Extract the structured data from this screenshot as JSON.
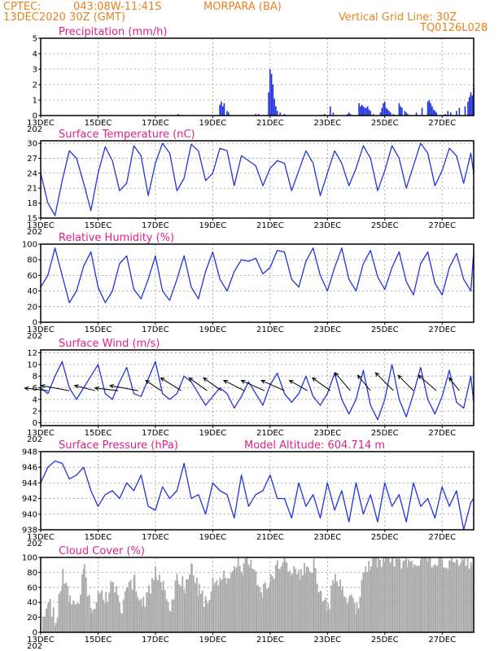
{
  "header": {
    "source": "CPTEC:",
    "coords": "043:08W-11:41S",
    "station": "MORPARA (BA)",
    "run": "13DEC2020 30Z (GMT)",
    "grid_note": "Vertical Grid Line: 30Z",
    "model_code": "TQ0126L028"
  },
  "colors": {
    "header": "#e8821e",
    "panel_title": "#e0208a",
    "line": "#2233dd",
    "cloud": "#a9a9a9",
    "wind_arrow": "#000000"
  },
  "x_axis": {
    "ticks": [
      "13DEC",
      "15DEC",
      "17DEC",
      "19DEC",
      "21DEC",
      "23DEC",
      "25DEC",
      "27DEC"
    ],
    "tick_days": [
      0,
      2,
      4,
      6,
      8,
      10,
      12,
      14
    ],
    "clipped_label": "202",
    "range_days": [
      0,
      15.1
    ]
  },
  "chart_data": [
    {
      "id": "precip",
      "type": "bar",
      "title": "Precipitation (mm/h)",
      "ylim": [
        0,
        5
      ],
      "yticks": [
        0,
        1,
        2,
        3,
        4,
        5
      ],
      "x_days": [
        4.8,
        6.25,
        6.3,
        6.35,
        6.4,
        6.5,
        6.55,
        7.5,
        7.6,
        7.95,
        8.0,
        8.05,
        8.1,
        8.15,
        8.2,
        8.25,
        8.35,
        8.5,
        9.9,
        10.1,
        10.2,
        10.7,
        10.75,
        10.8,
        11.1,
        11.15,
        11.2,
        11.25,
        11.3,
        11.35,
        11.4,
        11.45,
        11.5,
        11.6,
        11.85,
        11.9,
        11.95,
        12.0,
        12.05,
        12.1,
        12.15,
        12.2,
        12.3,
        12.5,
        12.55,
        12.6,
        12.7,
        12.75,
        12.8,
        13.1,
        13.3,
        13.5,
        13.55,
        13.6,
        13.65,
        13.7,
        13.75,
        13.8,
        14.1,
        14.2,
        14.3,
        14.5,
        14.6,
        14.8,
        14.9,
        14.95,
        15.0,
        15.05,
        15.1
      ],
      "values": [
        0.1,
        0.7,
        0.9,
        0.6,
        0.8,
        0.3,
        0.2,
        0.1,
        0.1,
        1.5,
        3.0,
        2.7,
        2.0,
        1.1,
        0.6,
        0.3,
        0.2,
        0.1,
        0.1,
        0.6,
        0.2,
        0.1,
        0.2,
        0.1,
        0.8,
        0.6,
        0.7,
        0.6,
        0.5,
        0.5,
        0.6,
        0.4,
        0.3,
        0.1,
        0.2,
        0.5,
        0.8,
        0.9,
        0.5,
        0.4,
        0.3,
        0.2,
        0.1,
        0.8,
        0.6,
        0.5,
        0.3,
        0.2,
        0.1,
        0.2,
        0.5,
        0.9,
        1.0,
        0.8,
        0.6,
        0.4,
        0.3,
        0.2,
        0.1,
        0.3,
        0.2,
        0.3,
        0.5,
        0.6,
        0.9,
        1.2,
        1.5,
        1.3,
        1.8
      ]
    },
    {
      "id": "temp",
      "type": "line",
      "title": "Surface Temperature (nC)",
      "ylim": [
        15,
        30.5
      ],
      "yticks": [
        15,
        18,
        21,
        24,
        27,
        30
      ],
      "x_days": [
        0,
        0.25,
        0.5,
        0.75,
        1,
        1.25,
        1.5,
        1.75,
        2,
        2.25,
        2.5,
        2.75,
        3,
        3.25,
        3.5,
        3.75,
        4,
        4.25,
        4.5,
        4.75,
        5,
        5.25,
        5.5,
        5.75,
        6,
        6.25,
        6.5,
        6.75,
        7,
        7.25,
        7.5,
        7.75,
        8,
        8.25,
        8.5,
        8.75,
        9,
        9.25,
        9.5,
        9.75,
        10,
        10.25,
        10.5,
        10.75,
        11,
        11.25,
        11.5,
        11.75,
        12,
        12.25,
        12.5,
        12.75,
        13,
        13.25,
        13.5,
        13.75,
        14,
        14.25,
        14.5,
        14.75,
        15,
        15.1
      ],
      "values": [
        24,
        18,
        15.5,
        22.5,
        28.5,
        27,
        22,
        16.5,
        24,
        29.3,
        26.5,
        20.5,
        22,
        29.5,
        27.5,
        19.5,
        26,
        30,
        28,
        20.5,
        23,
        29.8,
        28.5,
        22.5,
        24,
        29,
        28.5,
        21.5,
        27.5,
        26.5,
        25.5,
        21.5,
        25,
        26.5,
        26,
        20.5,
        24.5,
        28.5,
        26,
        19.5,
        24,
        28.5,
        26,
        21.5,
        25,
        29.5,
        27,
        20.5,
        24.5,
        29.5,
        27,
        21,
        25.5,
        30,
        28,
        21.5,
        24.5,
        29,
        27.5,
        22,
        28,
        24
      ]
    },
    {
      "id": "rh",
      "type": "line",
      "title": "Relative Humidity (%)",
      "ylim": [
        0,
        100
      ],
      "yticks": [
        0,
        20,
        40,
        60,
        80,
        100
      ],
      "x_days": [
        0,
        0.25,
        0.5,
        0.75,
        1,
        1.25,
        1.5,
        1.75,
        2,
        2.25,
        2.5,
        2.75,
        3,
        3.25,
        3.5,
        3.75,
        4,
        4.25,
        4.5,
        4.75,
        5,
        5.25,
        5.5,
        5.75,
        6,
        6.25,
        6.5,
        6.75,
        7,
        7.25,
        7.5,
        7.75,
        8,
        8.25,
        8.5,
        8.75,
        9,
        9.25,
        9.5,
        9.75,
        10,
        10.25,
        10.5,
        10.75,
        11,
        11.25,
        11.5,
        11.75,
        12,
        12.25,
        12.5,
        12.75,
        13,
        13.25,
        13.5,
        13.75,
        14,
        14.25,
        14.5,
        14.75,
        15,
        15.1
      ],
      "values": [
        45,
        60,
        95,
        60,
        25,
        40,
        72,
        90,
        45,
        25,
        40,
        75,
        85,
        42,
        30,
        55,
        85,
        40,
        28,
        55,
        85,
        45,
        30,
        65,
        90,
        55,
        40,
        65,
        80,
        78,
        82,
        62,
        70,
        92,
        90,
        55,
        45,
        78,
        95,
        60,
        40,
        70,
        95,
        55,
        40,
        75,
        92,
        58,
        42,
        70,
        90,
        52,
        35,
        75,
        90,
        50,
        35,
        70,
        88,
        55,
        40,
        90
      ]
    },
    {
      "id": "wind",
      "type": "line",
      "title": "Surface Wind (m/s)",
      "ylim": [
        -0.5,
        12.5
      ],
      "yticks": [
        0,
        2,
        4,
        6,
        8,
        10,
        12
      ],
      "x_days": [
        0,
        0.25,
        0.5,
        0.75,
        1,
        1.25,
        1.5,
        1.75,
        2,
        2.25,
        2.5,
        2.75,
        3,
        3.25,
        3.5,
        3.75,
        4,
        4.25,
        4.5,
        4.75,
        5,
        5.25,
        5.5,
        5.75,
        6,
        6.25,
        6.5,
        6.75,
        7,
        7.25,
        7.5,
        7.75,
        8,
        8.25,
        8.5,
        8.75,
        9,
        9.25,
        9.5,
        9.75,
        10,
        10.25,
        10.5,
        10.75,
        11,
        11.25,
        11.5,
        11.75,
        12,
        12.25,
        12.5,
        12.75,
        13,
        13.25,
        13.5,
        13.75,
        14,
        14.25,
        14.5,
        14.75,
        15,
        15.1
      ],
      "values": [
        6,
        5,
        8,
        10.5,
        6,
        4,
        6,
        8,
        10,
        5,
        4,
        7,
        9.5,
        5,
        4.5,
        7.5,
        10.5,
        5,
        4,
        5,
        8,
        7,
        5,
        3,
        4.5,
        6,
        5,
        2.5,
        4.5,
        7,
        5,
        3,
        6.5,
        8.5,
        5,
        3.5,
        5,
        8,
        4.5,
        3,
        5,
        8.5,
        4,
        1.5,
        4,
        9,
        3,
        0.5,
        4,
        10,
        4,
        1,
        5,
        9.5,
        4,
        1.5,
        4.5,
        9,
        3.5,
        2.5,
        8,
        3.5
      ],
      "arrows": {
        "x_days": [
          0.25,
          1.0,
          1.9,
          2.7,
          3.4,
          4.2,
          4.9,
          5.8,
          6.3,
          7.1,
          7.8,
          8.5,
          9.3,
          10.1,
          10.8,
          11.5,
          12.3,
          13.0,
          13.8,
          14.6
        ],
        "u": [
          -4.5,
          -5.5,
          -4,
          -4.5,
          -5.5,
          -3,
          -4,
          -3.5,
          -3.5,
          -4,
          -4.5,
          -4.5,
          -3.5,
          -3.5,
          -3,
          -2.5,
          -3.5,
          -3,
          -3.5,
          -2
        ],
        "v": [
          0.5,
          1,
          1,
          0.5,
          1,
          2,
          2.5,
          2.5,
          2.5,
          2,
          2,
          2,
          2,
          2.5,
          3.5,
          3,
          3.5,
          3,
          3,
          2.5
        ]
      }
    },
    {
      "id": "press",
      "type": "line",
      "title": "Surface Pressure (hPa)",
      "ylim": [
        938,
        948
      ],
      "yticks": [
        938,
        940,
        942,
        944,
        946,
        948
      ],
      "x_days": [
        0,
        0.25,
        0.5,
        0.75,
        1,
        1.25,
        1.5,
        1.75,
        2,
        2.25,
        2.5,
        2.75,
        3,
        3.25,
        3.5,
        3.75,
        4,
        4.25,
        4.5,
        4.75,
        5,
        5.25,
        5.5,
        5.75,
        6,
        6.25,
        6.5,
        6.75,
        7,
        7.25,
        7.5,
        7.75,
        8,
        8.25,
        8.5,
        8.75,
        9,
        9.25,
        9.5,
        9.75,
        10,
        10.25,
        10.5,
        10.75,
        11,
        11.25,
        11.5,
        11.75,
        12,
        12.25,
        12.5,
        12.75,
        13,
        13.25,
        13.5,
        13.75,
        14,
        14.25,
        14.5,
        14.75,
        15,
        15.1
      ],
      "values": [
        944,
        946,
        946.8,
        946.5,
        944.5,
        945,
        946,
        943,
        941,
        942.5,
        943,
        942,
        944,
        943,
        945,
        941,
        940.5,
        943.5,
        942,
        943,
        946.5,
        942,
        942.5,
        940,
        944,
        943,
        942.5,
        939.5,
        945,
        941,
        942.5,
        943,
        945,
        942,
        942,
        939.5,
        944,
        941,
        942.5,
        939.5,
        944,
        940.5,
        943,
        939,
        944,
        940,
        942.5,
        939,
        944,
        941,
        942.5,
        939,
        944,
        941,
        942,
        939.5,
        943.5,
        941,
        943,
        938,
        941.5,
        942
      ]
    },
    {
      "id": "cloud",
      "type": "area",
      "title": "Cloud Cover (%)",
      "ylim": [
        0,
        100
      ],
      "yticks": [
        0,
        20,
        40,
        60,
        80,
        100
      ],
      "x_days": [
        0,
        0.25,
        0.5,
        0.75,
        1,
        1.25,
        1.5,
        1.75,
        2,
        2.25,
        2.5,
        2.75,
        3,
        3.25,
        3.5,
        3.75,
        4,
        4.25,
        4.5,
        4.75,
        5,
        5.25,
        5.5,
        5.75,
        6,
        6.25,
        6.5,
        6.75,
        7,
        7.25,
        7.5,
        7.75,
        8,
        8.25,
        8.5,
        8.75,
        9,
        9.25,
        9.5,
        9.75,
        10,
        10.25,
        10.5,
        10.75,
        11,
        11.25,
        11.5,
        11.75,
        12,
        12.25,
        12.5,
        12.75,
        13,
        13.25,
        13.5,
        13.75,
        14,
        14.25,
        14.5,
        14.75,
        15,
        15.1
      ],
      "values": [
        5,
        45,
        15,
        75,
        40,
        30,
        85,
        20,
        60,
        45,
        75,
        25,
        55,
        70,
        35,
        55,
        80,
        65,
        35,
        75,
        60,
        90,
        55,
        40,
        65,
        70,
        75,
        95,
        85,
        95,
        70,
        55,
        75,
        90,
        95,
        80,
        75,
        85,
        90,
        50,
        30,
        80,
        55,
        45,
        30,
        85,
        95,
        95,
        95,
        96,
        95,
        97,
        96,
        95,
        96,
        97,
        95,
        96,
        97,
        96,
        95,
        97
      ]
    }
  ],
  "pressure_note": "Model Altitude: 604.714 m"
}
